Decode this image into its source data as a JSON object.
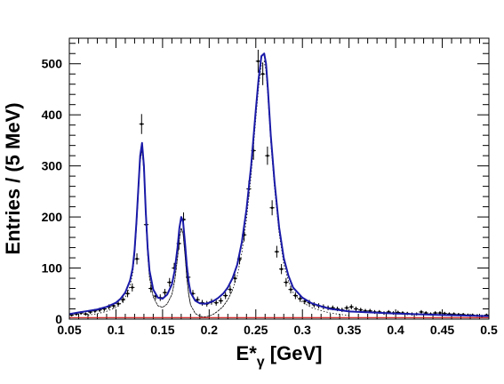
{
  "chart_data": {
    "type": "line",
    "xlabel_main": "E*",
    "xlabel_sub": "γ",
    "xlabel_unit": " [GeV]",
    "ylabel": "Entries / (5 MeV)",
    "xlim": [
      0.05,
      0.5
    ],
    "ylim": [
      0,
      550
    ],
    "x_ticks": [
      0.05,
      0.1,
      0.15,
      0.2,
      0.25,
      0.3,
      0.35,
      0.4,
      0.45,
      0.5
    ],
    "x_tick_labels": [
      "0.05",
      "0.1",
      "0.15",
      "0.2",
      "0.25",
      "0.3",
      "0.35",
      "0.4",
      "0.45",
      "0.5"
    ],
    "y_ticks": [
      0,
      100,
      200,
      300,
      400,
      500
    ],
    "y_tick_labels": [
      "0",
      "100",
      "200",
      "300",
      "400",
      "500"
    ],
    "grid": false,
    "legend": "none",
    "colors": {
      "fit": "#1a1aa8",
      "background": "#cc1111",
      "data": "#000000",
      "components": "#000000"
    },
    "series": [
      {
        "kind": "data",
        "x": [
          0.0525,
          0.0575,
          0.0625,
          0.0675,
          0.0725,
          0.0775,
          0.0825,
          0.0875,
          0.0925,
          0.0975,
          0.1025,
          0.1075,
          0.1125,
          0.1175,
          0.1225,
          0.1275,
          0.1325,
          0.1375,
          0.1425,
          0.1475,
          0.1525,
          0.1575,
          0.1625,
          0.1675,
          0.1725,
          0.1775,
          0.1825,
          0.1875,
          0.1925,
          0.1975,
          0.2025,
          0.2075,
          0.2125,
          0.2175,
          0.2225,
          0.2275,
          0.2325,
          0.2375,
          0.2425,
          0.2475,
          0.2525,
          0.2575,
          0.2625,
          0.2675,
          0.2725,
          0.2775,
          0.2825,
          0.2875,
          0.2925,
          0.2975,
          0.3025,
          0.3075,
          0.3125,
          0.3175,
          0.3225,
          0.3275,
          0.3325,
          0.3375,
          0.3425,
          0.3475,
          0.3525,
          0.3575,
          0.3625,
          0.3675,
          0.3725,
          0.3775,
          0.3825,
          0.3875,
          0.3925,
          0.3975,
          0.4025,
          0.4075,
          0.4125,
          0.4175,
          0.4225,
          0.4275,
          0.4325,
          0.4375,
          0.4425,
          0.4475,
          0.4525,
          0.4575,
          0.4625,
          0.4675,
          0.4725,
          0.4775,
          0.4825,
          0.4875,
          0.4925,
          0.4975
        ],
        "y": [
          8,
          10,
          12,
          10,
          14,
          16,
          18,
          20,
          24,
          26,
          30,
          38,
          50,
          62,
          118,
          382,
          185,
          60,
          45,
          42,
          52,
          72,
          100,
          148,
          195,
          82,
          50,
          38,
          32,
          30,
          34,
          32,
          36,
          46,
          58,
          80,
          118,
          165,
          255,
          330,
          505,
          480,
          320,
          218,
          132,
          98,
          72,
          58,
          46,
          40,
          35,
          32,
          28,
          26,
          24,
          22,
          22,
          20,
          18,
          22,
          24,
          20,
          18,
          16,
          16,
          14,
          14,
          12,
          14,
          12,
          13,
          12,
          11,
          10,
          10,
          14,
          12,
          10,
          12,
          12,
          11,
          10,
          10,
          9,
          9,
          8,
          8,
          7,
          6,
          8
        ]
      },
      {
        "kind": "total-fit",
        "x": [
          0.05,
          0.06,
          0.07,
          0.08,
          0.09,
          0.1,
          0.105,
          0.11,
          0.115,
          0.118,
          0.12,
          0.122,
          0.124,
          0.126,
          0.128,
          0.13,
          0.132,
          0.134,
          0.136,
          0.14,
          0.145,
          0.15,
          0.155,
          0.16,
          0.163,
          0.166,
          0.168,
          0.17,
          0.172,
          0.174,
          0.176,
          0.178,
          0.18,
          0.185,
          0.19,
          0.195,
          0.2,
          0.205,
          0.21,
          0.215,
          0.22,
          0.225,
          0.23,
          0.235,
          0.24,
          0.245,
          0.25,
          0.253,
          0.256,
          0.259,
          0.261,
          0.263,
          0.266,
          0.27,
          0.275,
          0.28,
          0.285,
          0.29,
          0.3,
          0.31,
          0.32,
          0.33,
          0.35,
          0.4,
          0.45,
          0.5
        ],
        "y": [
          10,
          13,
          16,
          19,
          24,
          32,
          40,
          52,
          75,
          100,
          135,
          190,
          255,
          320,
          345,
          300,
          210,
          140,
          95,
          58,
          42,
          40,
          48,
          68,
          95,
          140,
          178,
          200,
          190,
          150,
          105,
          72,
          52,
          36,
          31,
          30,
          32,
          36,
          42,
          50,
          62,
          80,
          106,
          150,
          215,
          300,
          410,
          470,
          515,
          520,
          500,
          450,
          360,
          270,
          180,
          120,
          85,
          62,
          42,
          31,
          25,
          20,
          15,
          11,
          8,
          6
        ]
      },
      {
        "kind": "background",
        "x": [
          0.05,
          0.5
        ],
        "y": [
          3,
          3
        ]
      }
    ]
  }
}
